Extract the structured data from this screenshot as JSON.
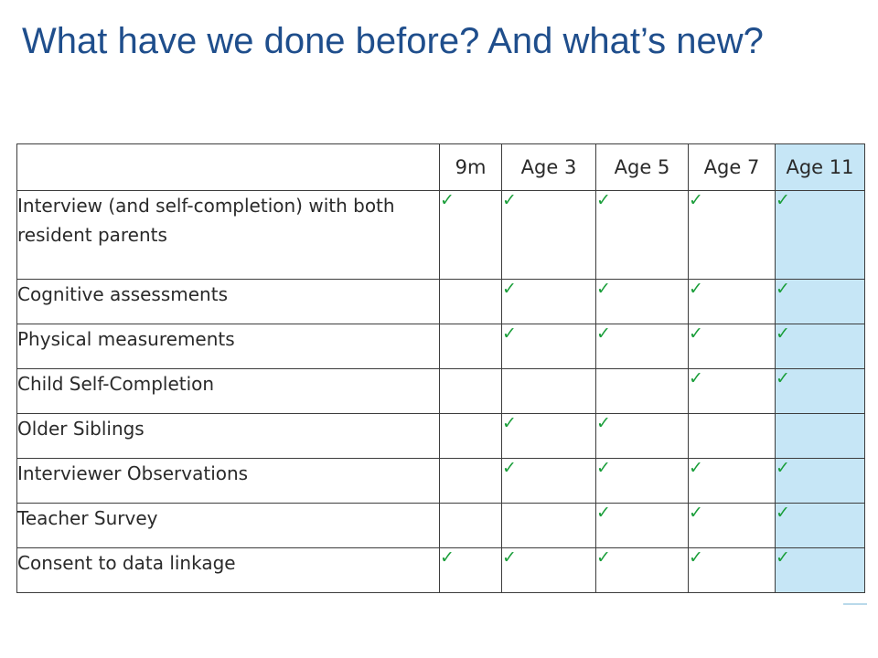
{
  "slide": {
    "title": "What have we done before? And what’s new?"
  },
  "table": {
    "columns": [
      "9m",
      "Age 3",
      "Age 5",
      "Age 7",
      "Age 11"
    ],
    "highlighted_column": "Age 11",
    "highlight_color": "#c6e6f6",
    "check_color": "#1a9e3a",
    "check_glyph": "✓",
    "rows": [
      {
        "label": "Interview (and self-completion) with both resident parents",
        "checks": [
          true,
          true,
          true,
          true,
          true
        ]
      },
      {
        "label": "Cognitive assessments",
        "checks": [
          false,
          true,
          true,
          true,
          true
        ]
      },
      {
        "label": "Physical measurements",
        "checks": [
          false,
          true,
          true,
          true,
          true
        ]
      },
      {
        "label": "Child Self-Completion",
        "checks": [
          false,
          false,
          false,
          true,
          true
        ]
      },
      {
        "label": "Older Siblings",
        "checks": [
          false,
          true,
          true,
          false,
          false
        ]
      },
      {
        "label": "Interviewer Observations",
        "checks": [
          false,
          true,
          true,
          true,
          true
        ]
      },
      {
        "label": "Teacher Survey",
        "checks": [
          false,
          false,
          true,
          true,
          true
        ]
      },
      {
        "label": "Consent to data linkage",
        "checks": [
          true,
          true,
          true,
          true,
          true
        ]
      }
    ]
  }
}
